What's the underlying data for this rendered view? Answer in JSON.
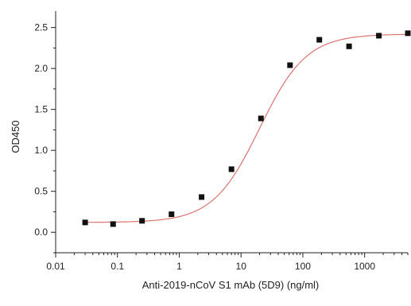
{
  "chart_data": {
    "type": "scatter",
    "title": "",
    "xlabel": "Anti-2019-nCoV S1 mAb (5D9) (ng/ml)",
    "ylabel": "OD450",
    "xscale": "log",
    "xlim": [
      0.01,
      5000
    ],
    "ylim": [
      -0.25,
      2.7
    ],
    "x_ticks": [
      0.01,
      0.1,
      1,
      10,
      100,
      1000
    ],
    "x_tick_labels": [
      "0.01",
      "0.1",
      "1",
      "10",
      "100",
      "1000"
    ],
    "y_ticks": [
      0.0,
      0.5,
      1.0,
      1.5,
      2.0,
      2.5
    ],
    "y_tick_labels": [
      "0.0",
      "0.5",
      "1.0",
      "1.5",
      "2.0",
      "2.5"
    ],
    "grid": false,
    "legend": "none",
    "series": [
      {
        "marker": "square",
        "color": "#111111",
        "points": [
          {
            "x": 0.03,
            "y": 0.12
          },
          {
            "x": 0.085,
            "y": 0.1
          },
          {
            "x": 0.25,
            "y": 0.14
          },
          {
            "x": 0.75,
            "y": 0.22
          },
          {
            "x": 2.3,
            "y": 0.43
          },
          {
            "x": 7.0,
            "y": 0.77
          },
          {
            "x": 21,
            "y": 1.39
          },
          {
            "x": 62,
            "y": 2.04
          },
          {
            "x": 185,
            "y": 2.35
          },
          {
            "x": 560,
            "y": 2.27
          },
          {
            "x": 1700,
            "y": 2.4
          },
          {
            "x": 5000,
            "y": 2.43
          }
        ]
      }
    ],
    "fit": {
      "type": "4PL",
      "color": "#d9746f",
      "bottom": 0.12,
      "top": 2.42,
      "ec50": 20,
      "hill": 1.15
    }
  }
}
